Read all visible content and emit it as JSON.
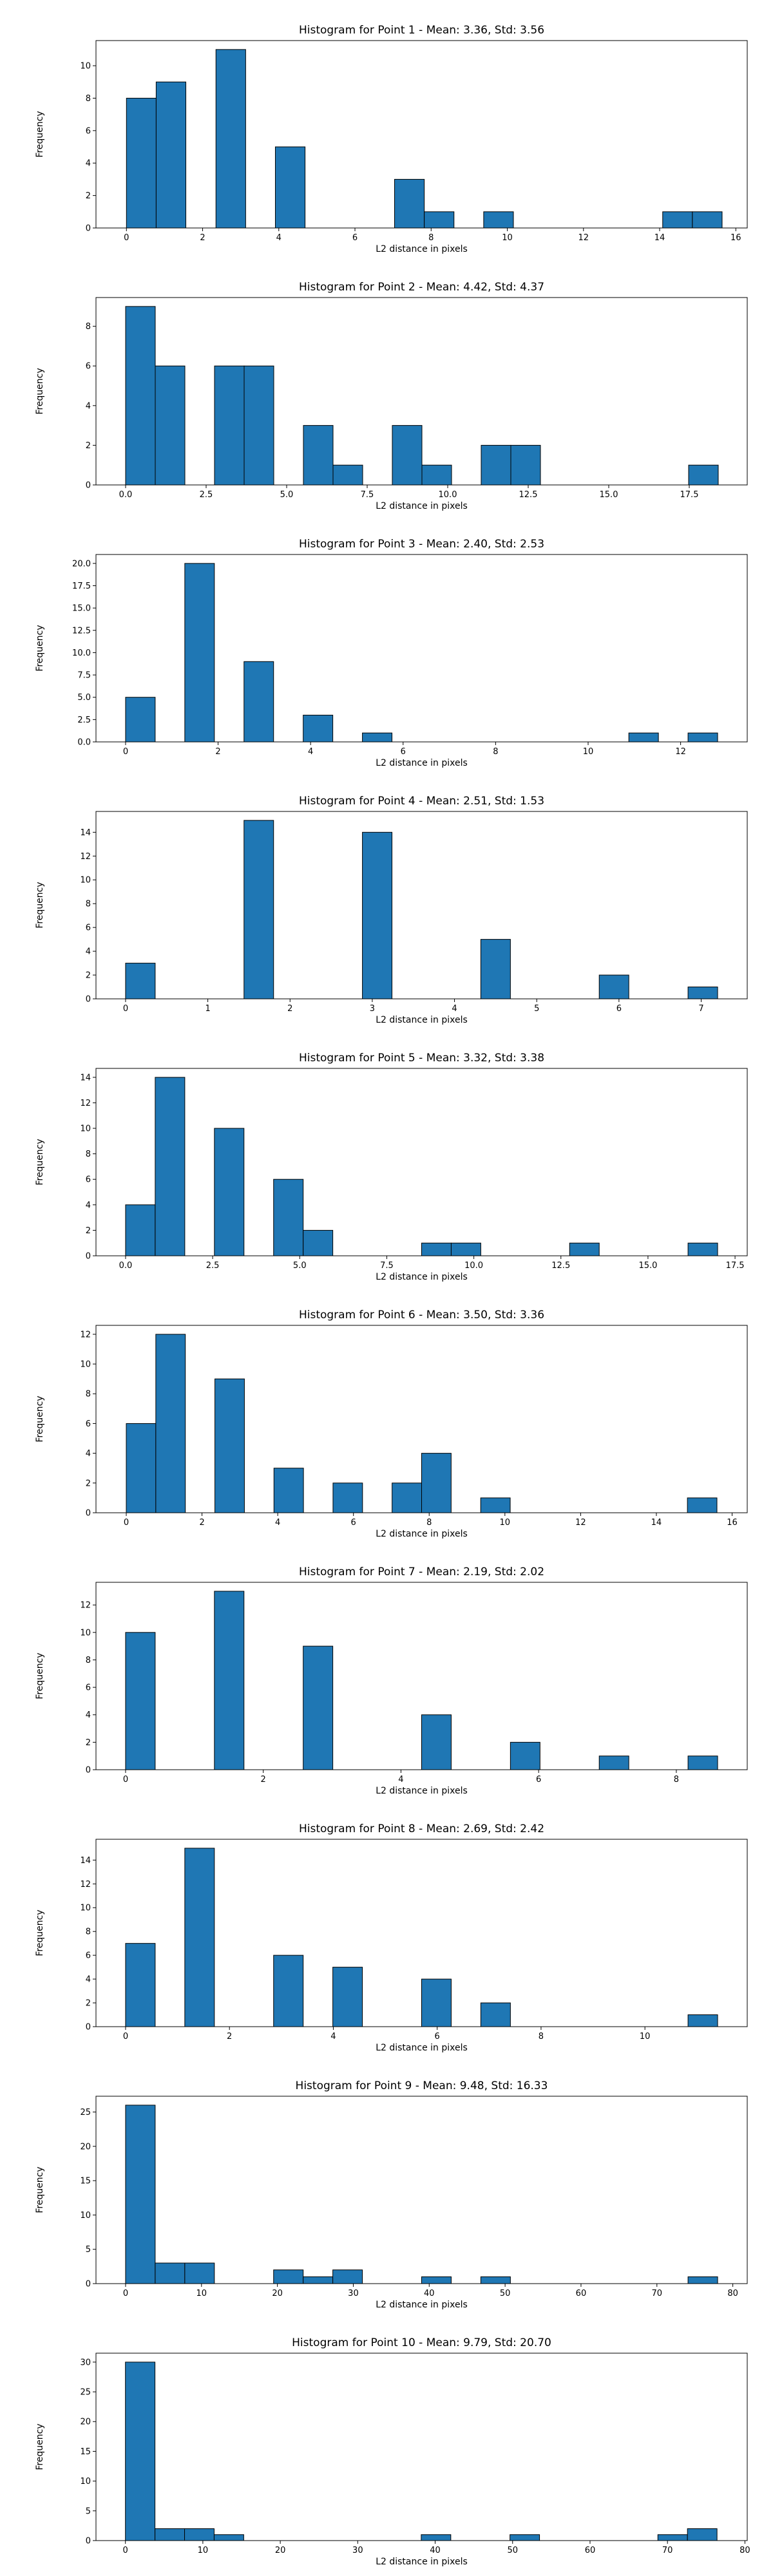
{
  "colors": {
    "bar_fill": "#1f77b4",
    "bar_edge": "#000000",
    "axis": "#000000",
    "background": "#ffffff"
  },
  "chart_data": [
    {
      "type": "bar",
      "title": "Histogram for Point 1 - Mean: 3.36, Std: 3.56",
      "xlabel": "L2 distance in pixels",
      "ylabel": "Frequency",
      "xlim": [
        -0.8,
        16.3
      ],
      "ylim": [
        0,
        11.55
      ],
      "xticks": [
        0,
        2,
        4,
        6,
        8,
        10,
        12,
        14,
        16
      ],
      "xtick_labels": [
        "0",
        "2",
        "4",
        "6",
        "8",
        "10",
        "12",
        "14",
        "16"
      ],
      "yticks": [
        0,
        2,
        4,
        6,
        8,
        10
      ],
      "ytick_labels": [
        "0",
        "2",
        "4",
        "6",
        "8",
        "10"
      ],
      "bins": [
        {
          "x0": 0.0,
          "x1": 0.78,
          "count": 8
        },
        {
          "x0": 0.78,
          "x1": 1.56,
          "count": 9
        },
        {
          "x0": 2.35,
          "x1": 3.13,
          "count": 11
        },
        {
          "x0": 3.91,
          "x1": 4.69,
          "count": 5
        },
        {
          "x0": 7.04,
          "x1": 7.82,
          "count": 3
        },
        {
          "x0": 7.82,
          "x1": 8.6,
          "count": 1
        },
        {
          "x0": 9.38,
          "x1": 10.16,
          "count": 1
        },
        {
          "x0": 14.08,
          "x1": 14.86,
          "count": 1
        },
        {
          "x0": 14.86,
          "x1": 15.64,
          "count": 1
        }
      ]
    },
    {
      "type": "bar",
      "title": "Histogram for Point 2 - Mean: 4.42, Std: 4.37",
      "xlabel": "L2 distance in pixels",
      "ylabel": "Frequency",
      "xlim": [
        -0.92,
        19.3
      ],
      "ylim": [
        0,
        9.45
      ],
      "xticks": [
        0,
        2.5,
        5,
        7.5,
        10,
        12.5,
        15,
        17.5
      ],
      "xtick_labels": [
        "0.0",
        "2.5",
        "5.0",
        "7.5",
        "10.0",
        "12.5",
        "15.0",
        "17.5"
      ],
      "yticks": [
        0,
        2,
        4,
        6,
        8
      ],
      "ytick_labels": [
        "0",
        "2",
        "4",
        "6",
        "8"
      ],
      "bins": [
        {
          "x0": 0.0,
          "x1": 0.92,
          "count": 9
        },
        {
          "x0": 0.92,
          "x1": 1.84,
          "count": 6
        },
        {
          "x0": 2.76,
          "x1": 3.68,
          "count": 6
        },
        {
          "x0": 3.68,
          "x1": 4.6,
          "count": 6
        },
        {
          "x0": 5.52,
          "x1": 6.44,
          "count": 3
        },
        {
          "x0": 6.44,
          "x1": 7.36,
          "count": 1
        },
        {
          "x0": 8.28,
          "x1": 9.2,
          "count": 3
        },
        {
          "x0": 9.2,
          "x1": 10.12,
          "count": 1
        },
        {
          "x0": 11.04,
          "x1": 11.96,
          "count": 2
        },
        {
          "x0": 11.96,
          "x1": 12.88,
          "count": 2
        },
        {
          "x0": 17.48,
          "x1": 18.4,
          "count": 1
        }
      ]
    },
    {
      "type": "bar",
      "title": "Histogram for Point 3 - Mean: 2.40, Std: 2.53",
      "xlabel": "L2 distance in pixels",
      "ylabel": "Frequency",
      "xlim": [
        -0.64,
        13.44
      ],
      "ylim": [
        0,
        21.0
      ],
      "xticks": [
        0,
        2,
        4,
        6,
        8,
        10,
        12
      ],
      "xtick_labels": [
        "0",
        "2",
        "4",
        "6",
        "8",
        "10",
        "12"
      ],
      "yticks": [
        0,
        2.5,
        5,
        7.5,
        10,
        12.5,
        15,
        17.5,
        20
      ],
      "ytick_labels": [
        "0.0",
        "2.5",
        "5.0",
        "7.5",
        "10.0",
        "12.5",
        "15.0",
        "17.5",
        "20.0"
      ],
      "bins": [
        {
          "x0": 0.0,
          "x1": 0.64,
          "count": 5
        },
        {
          "x0": 1.28,
          "x1": 1.92,
          "count": 20
        },
        {
          "x0": 2.56,
          "x1": 3.2,
          "count": 9
        },
        {
          "x0": 3.84,
          "x1": 4.48,
          "count": 3
        },
        {
          "x0": 5.12,
          "x1": 5.76,
          "count": 1
        },
        {
          "x0": 10.88,
          "x1": 11.52,
          "count": 1
        },
        {
          "x0": 12.16,
          "x1": 12.8,
          "count": 1
        }
      ]
    },
    {
      "type": "bar",
      "title": "Histogram for Point 4 - Mean: 2.51, Std: 1.53",
      "xlabel": "L2 distance in pixels",
      "ylabel": "Frequency",
      "xlim": [
        -0.36,
        7.56
      ],
      "ylim": [
        0,
        15.75
      ],
      "xticks": [
        0,
        1,
        2,
        3,
        4,
        5,
        6,
        7
      ],
      "xtick_labels": [
        "0",
        "1",
        "2",
        "3",
        "4",
        "5",
        "6",
        "7"
      ],
      "yticks": [
        0,
        2,
        4,
        6,
        8,
        10,
        12,
        14
      ],
      "ytick_labels": [
        "0",
        "2",
        "4",
        "6",
        "8",
        "10",
        "12",
        "14"
      ],
      "bins": [
        {
          "x0": 0.0,
          "x1": 0.36,
          "count": 3
        },
        {
          "x0": 1.44,
          "x1": 1.8,
          "count": 15
        },
        {
          "x0": 2.88,
          "x1": 3.24,
          "count": 14
        },
        {
          "x0": 4.32,
          "x1": 4.68,
          "count": 5
        },
        {
          "x0": 5.76,
          "x1": 6.12,
          "count": 2
        },
        {
          "x0": 6.84,
          "x1": 7.2,
          "count": 1
        }
      ]
    },
    {
      "type": "bar",
      "title": "Histogram for Point 5 - Mean: 3.32, Std: 3.38",
      "xlabel": "L2 distance in pixels",
      "ylabel": "Frequency",
      "xlim": [
        -0.85,
        17.85
      ],
      "ylim": [
        0,
        14.7
      ],
      "xticks": [
        0,
        2.5,
        5,
        7.5,
        10,
        12.5,
        15,
        17.5
      ],
      "xtick_labels": [
        "0.0",
        "2.5",
        "5.0",
        "7.5",
        "10.0",
        "12.5",
        "15.0",
        "17.5"
      ],
      "yticks": [
        0,
        2,
        4,
        6,
        8,
        10,
        12,
        14
      ],
      "ytick_labels": [
        "0",
        "2",
        "4",
        "6",
        "8",
        "10",
        "12",
        "14"
      ],
      "bins": [
        {
          "x0": 0.0,
          "x1": 0.85,
          "count": 4
        },
        {
          "x0": 0.85,
          "x1": 1.7,
          "count": 14
        },
        {
          "x0": 2.55,
          "x1": 3.4,
          "count": 10
        },
        {
          "x0": 4.25,
          "x1": 5.1,
          "count": 6
        },
        {
          "x0": 5.1,
          "x1": 5.95,
          "count": 2
        },
        {
          "x0": 8.5,
          "x1": 9.35,
          "count": 1
        },
        {
          "x0": 9.35,
          "x1": 10.2,
          "count": 1
        },
        {
          "x0": 12.75,
          "x1": 13.6,
          "count": 1
        },
        {
          "x0": 16.15,
          "x1": 17.0,
          "count": 1
        }
      ]
    },
    {
      "type": "bar",
      "title": "Histogram for Point 6 - Mean: 3.50, Std: 3.36",
      "xlabel": "L2 distance in pixels",
      "ylabel": "Frequency",
      "xlim": [
        -0.8,
        16.4
      ],
      "ylim": [
        0,
        12.6
      ],
      "xticks": [
        0,
        2,
        4,
        6,
        8,
        10,
        12,
        14,
        16
      ],
      "xtick_labels": [
        "0",
        "2",
        "4",
        "6",
        "8",
        "10",
        "12",
        "14",
        "16"
      ],
      "yticks": [
        0,
        2,
        4,
        6,
        8,
        10,
        12
      ],
      "ytick_labels": [
        "0",
        "2",
        "4",
        "6",
        "8",
        "10",
        "12"
      ],
      "bins": [
        {
          "x0": 0.0,
          "x1": 0.78,
          "count": 6
        },
        {
          "x0": 0.78,
          "x1": 1.56,
          "count": 12
        },
        {
          "x0": 2.34,
          "x1": 3.12,
          "count": 9
        },
        {
          "x0": 3.9,
          "x1": 4.68,
          "count": 3
        },
        {
          "x0": 5.46,
          "x1": 6.24,
          "count": 2
        },
        {
          "x0": 7.02,
          "x1": 7.8,
          "count": 2
        },
        {
          "x0": 7.8,
          "x1": 8.58,
          "count": 4
        },
        {
          "x0": 9.36,
          "x1": 10.14,
          "count": 1
        },
        {
          "x0": 14.82,
          "x1": 15.6,
          "count": 1
        }
      ]
    },
    {
      "type": "bar",
      "title": "Histogram for Point 7 - Mean: 2.19, Std: 2.02",
      "xlabel": "L2 distance in pixels",
      "ylabel": "Frequency",
      "xlim": [
        -0.43,
        9.03
      ],
      "ylim": [
        0,
        13.65
      ],
      "xticks": [
        0,
        2,
        4,
        6,
        8
      ],
      "xtick_labels": [
        "0",
        "2",
        "4",
        "6",
        "8"
      ],
      "yticks": [
        0,
        2,
        4,
        6,
        8,
        10,
        12
      ],
      "ytick_labels": [
        "0",
        "2",
        "4",
        "6",
        "8",
        "10",
        "12"
      ],
      "bins": [
        {
          "x0": 0.0,
          "x1": 0.43,
          "count": 10
        },
        {
          "x0": 1.29,
          "x1": 1.72,
          "count": 13
        },
        {
          "x0": 2.58,
          "x1": 3.01,
          "count": 9
        },
        {
          "x0": 4.3,
          "x1": 4.73,
          "count": 4
        },
        {
          "x0": 5.59,
          "x1": 6.02,
          "count": 2
        },
        {
          "x0": 6.88,
          "x1": 7.31,
          "count": 1
        },
        {
          "x0": 8.17,
          "x1": 8.6,
          "count": 1
        }
      ]
    },
    {
      "type": "bar",
      "title": "Histogram for Point 8 - Mean: 2.69, Std: 2.42",
      "xlabel": "L2 distance in pixels",
      "ylabel": "Frequency",
      "xlim": [
        -0.57,
        11.97
      ],
      "ylim": [
        0,
        15.75
      ],
      "xticks": [
        0,
        2,
        4,
        6,
        8,
        10
      ],
      "xtick_labels": [
        "0",
        "2",
        "4",
        "6",
        "8",
        "10"
      ],
      "yticks": [
        0,
        2,
        4,
        6,
        8,
        10,
        12,
        14
      ],
      "ytick_labels": [
        "0",
        "2",
        "4",
        "6",
        "8",
        "10",
        "12",
        "14"
      ],
      "bins": [
        {
          "x0": 0.0,
          "x1": 0.57,
          "count": 7
        },
        {
          "x0": 1.14,
          "x1": 1.71,
          "count": 15
        },
        {
          "x0": 2.85,
          "x1": 3.42,
          "count": 6
        },
        {
          "x0": 3.99,
          "x1": 4.56,
          "count": 5
        },
        {
          "x0": 5.7,
          "x1": 6.27,
          "count": 4
        },
        {
          "x0": 6.84,
          "x1": 7.41,
          "count": 2
        },
        {
          "x0": 10.83,
          "x1": 11.4,
          "count": 1
        }
      ]
    },
    {
      "type": "bar",
      "title": "Histogram for Point 9 - Mean: 9.48, Std: 16.33",
      "xlabel": "L2 distance in pixels",
      "ylabel": "Frequency",
      "xlim": [
        -3.9,
        81.9
      ],
      "ylim": [
        0,
        27.3
      ],
      "xticks": [
        0,
        10,
        20,
        30,
        40,
        50,
        60,
        70,
        80
      ],
      "xtick_labels": [
        "0",
        "10",
        "20",
        "30",
        "40",
        "50",
        "60",
        "70",
        "80"
      ],
      "yticks": [
        0,
        5,
        10,
        15,
        20,
        25
      ],
      "ytick_labels": [
        "0",
        "5",
        "10",
        "15",
        "20",
        "25"
      ],
      "bins": [
        {
          "x0": 0.0,
          "x1": 3.9,
          "count": 26
        },
        {
          "x0": 3.9,
          "x1": 7.8,
          "count": 3
        },
        {
          "x0": 7.8,
          "x1": 11.7,
          "count": 3
        },
        {
          "x0": 19.5,
          "x1": 23.4,
          "count": 2
        },
        {
          "x0": 23.4,
          "x1": 27.3,
          "count": 1
        },
        {
          "x0": 27.3,
          "x1": 31.2,
          "count": 2
        },
        {
          "x0": 39.0,
          "x1": 42.9,
          "count": 1
        },
        {
          "x0": 46.8,
          "x1": 50.7,
          "count": 1
        },
        {
          "x0": 74.1,
          "x1": 78.0,
          "count": 1
        }
      ]
    },
    {
      "type": "bar",
      "title": "Histogram for Point 10 - Mean: 9.79, Std: 20.70",
      "xlabel": "L2 distance in pixels",
      "ylabel": "Frequency",
      "xlim": [
        -3.8,
        80.3
      ],
      "ylim": [
        0,
        31.5
      ],
      "xticks": [
        0,
        10,
        20,
        30,
        40,
        50,
        60,
        70,
        80
      ],
      "xtick_labels": [
        "0",
        "10",
        "20",
        "30",
        "40",
        "50",
        "60",
        "70",
        "80"
      ],
      "yticks": [
        0,
        5,
        10,
        15,
        20,
        25,
        30
      ],
      "ytick_labels": [
        "0",
        "5",
        "10",
        "15",
        "20",
        "25",
        "30"
      ],
      "bins": [
        {
          "x0": 0.0,
          "x1": 3.82,
          "count": 30
        },
        {
          "x0": 3.82,
          "x1": 7.64,
          "count": 2
        },
        {
          "x0": 7.64,
          "x1": 11.46,
          "count": 2
        },
        {
          "x0": 11.46,
          "x1": 15.28,
          "count": 1
        },
        {
          "x0": 38.2,
          "x1": 42.02,
          "count": 1
        },
        {
          "x0": 49.66,
          "x1": 53.48,
          "count": 1
        },
        {
          "x0": 68.76,
          "x1": 72.58,
          "count": 1
        },
        {
          "x0": 72.58,
          "x1": 76.4,
          "count": 2
        }
      ]
    }
  ]
}
